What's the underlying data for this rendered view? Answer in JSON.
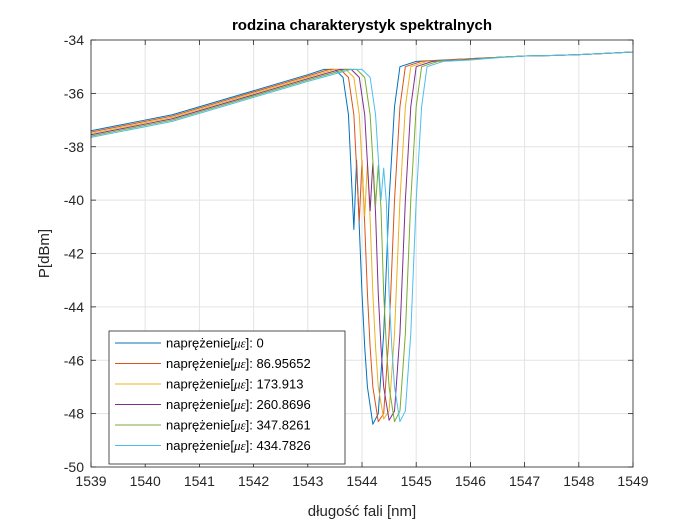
{
  "chart_data": {
    "type": "line",
    "title": "rodzina charakterystyk spektralnych",
    "xlabel": "długość fali [nm]",
    "ylabel": "P[dBm]",
    "xlim": [
      1539,
      1549
    ],
    "ylim": [
      -50,
      -34
    ],
    "x_ticks": [
      "1539",
      "1540",
      "1541",
      "1542",
      "1543",
      "1544",
      "1545",
      "1546",
      "1547",
      "1548",
      "1549"
    ],
    "y_ticks": [
      "-34",
      "-36",
      "-38",
      "-40",
      "-42",
      "-44",
      "-46",
      "-48",
      "-50"
    ],
    "grid": true,
    "legend_position": "bottom-left",
    "legend_prefix": "naprężenie[",
    "legend_unit": "με",
    "legend_suffix": "]: ",
    "series": [
      {
        "name": "naprężenie[με]: 0",
        "strain": "0",
        "color": "#0072BD",
        "x": [
          1539.0,
          1539.5,
          1540.0,
          1540.5,
          1541.0,
          1541.5,
          1542.0,
          1542.5,
          1543.0,
          1543.3,
          1543.5,
          1543.65,
          1543.75,
          1543.85,
          1543.9,
          1543.95,
          1544.0,
          1544.05,
          1544.1,
          1544.2,
          1544.3,
          1544.4,
          1544.5,
          1544.6,
          1544.7,
          1545.0,
          1545.5,
          1546.0,
          1546.5,
          1547.0,
          1547.5,
          1548.0,
          1548.5,
          1549.0
        ],
        "y": [
          -37.4,
          -37.2,
          -37.0,
          -36.8,
          -36.5,
          -36.2,
          -35.9,
          -35.6,
          -35.3,
          -35.1,
          -35.1,
          -35.4,
          -36.8,
          -41.1,
          -38.5,
          -41.0,
          -43.5,
          -45.5,
          -47.0,
          -48.4,
          -48.0,
          -45.0,
          -40.0,
          -36.5,
          -35.0,
          -34.8,
          -34.75,
          -34.7,
          -34.65,
          -34.6,
          -34.58,
          -34.55,
          -34.5,
          -34.45
        ]
      },
      {
        "name": "naprężenie[με]: 86.95652",
        "strain": "86.95652",
        "color": "#D95319",
        "x": [
          1539.0,
          1539.5,
          1540.0,
          1540.5,
          1541.0,
          1541.5,
          1542.0,
          1542.5,
          1543.0,
          1543.4,
          1543.6,
          1543.75,
          1543.85,
          1543.95,
          1544.0,
          1544.05,
          1544.1,
          1544.15,
          1544.2,
          1544.3,
          1544.4,
          1544.5,
          1544.6,
          1544.7,
          1544.8,
          1545.1,
          1545.6,
          1546.0,
          1546.5,
          1547.0,
          1547.5,
          1548.0,
          1548.5,
          1549.0
        ],
        "y": [
          -37.45,
          -37.25,
          -37.05,
          -36.85,
          -36.55,
          -36.25,
          -35.95,
          -35.65,
          -35.35,
          -35.1,
          -35.1,
          -35.4,
          -36.8,
          -40.8,
          -38.5,
          -40.9,
          -43.5,
          -45.5,
          -47.0,
          -48.3,
          -48.0,
          -45.0,
          -40.0,
          -36.5,
          -35.0,
          -34.8,
          -34.75,
          -34.7,
          -34.65,
          -34.6,
          -34.58,
          -34.55,
          -34.5,
          -34.45
        ]
      },
      {
        "name": "naprężenie[με]: 173.913",
        "strain": "173.913",
        "color": "#EDB120",
        "x": [
          1539.0,
          1539.5,
          1540.0,
          1540.5,
          1541.0,
          1541.5,
          1542.0,
          1542.5,
          1543.0,
          1543.5,
          1543.7,
          1543.85,
          1543.95,
          1544.05,
          1544.1,
          1544.15,
          1544.2,
          1544.25,
          1544.3,
          1544.4,
          1544.5,
          1544.6,
          1544.7,
          1544.8,
          1544.9,
          1545.2,
          1545.7,
          1546.0,
          1546.5,
          1547.0,
          1547.5,
          1548.0,
          1548.5,
          1549.0
        ],
        "y": [
          -37.5,
          -37.3,
          -37.1,
          -36.9,
          -36.6,
          -36.3,
          -36.0,
          -35.7,
          -35.4,
          -35.1,
          -35.1,
          -35.4,
          -36.8,
          -40.6,
          -38.6,
          -40.7,
          -43.5,
          -45.5,
          -47.0,
          -48.2,
          -47.9,
          -45.0,
          -40.0,
          -36.5,
          -35.0,
          -34.8,
          -34.75,
          -34.7,
          -34.65,
          -34.6,
          -34.58,
          -34.55,
          -34.5,
          -34.45
        ]
      },
      {
        "name": "naprężenie[με]: 260.8696",
        "strain": "260.8696",
        "color": "#7E2F8E",
        "x": [
          1539.0,
          1539.5,
          1540.0,
          1540.5,
          1541.0,
          1541.5,
          1542.0,
          1542.5,
          1543.0,
          1543.6,
          1543.8,
          1543.95,
          1544.05,
          1544.15,
          1544.2,
          1544.25,
          1544.3,
          1544.35,
          1544.4,
          1544.5,
          1544.6,
          1544.7,
          1544.8,
          1544.9,
          1545.0,
          1545.3,
          1545.8,
          1546.1,
          1546.5,
          1547.0,
          1547.5,
          1548.0,
          1548.5,
          1549.0
        ],
        "y": [
          -37.55,
          -37.35,
          -37.15,
          -36.95,
          -36.65,
          -36.35,
          -36.05,
          -35.75,
          -35.45,
          -35.1,
          -35.1,
          -35.4,
          -36.8,
          -40.4,
          -38.6,
          -40.5,
          -43.5,
          -45.5,
          -47.0,
          -48.25,
          -47.9,
          -45.0,
          -40.0,
          -36.5,
          -35.0,
          -34.8,
          -34.75,
          -34.7,
          -34.65,
          -34.6,
          -34.58,
          -34.55,
          -34.5,
          -34.45
        ]
      },
      {
        "name": "naprężenie[με]: 347.8261",
        "strain": "347.8261",
        "color": "#77AC30",
        "x": [
          1539.0,
          1539.5,
          1540.0,
          1540.5,
          1541.0,
          1541.5,
          1542.0,
          1542.5,
          1543.0,
          1543.7,
          1543.9,
          1544.05,
          1544.15,
          1544.25,
          1544.3,
          1544.35,
          1544.4,
          1544.45,
          1544.5,
          1544.6,
          1544.7,
          1544.8,
          1544.9,
          1545.0,
          1545.1,
          1545.4,
          1545.9,
          1546.2,
          1546.5,
          1547.0,
          1547.5,
          1548.0,
          1548.5,
          1549.0
        ],
        "y": [
          -37.6,
          -37.4,
          -37.2,
          -37.0,
          -36.7,
          -36.4,
          -36.1,
          -35.8,
          -35.5,
          -35.1,
          -35.1,
          -35.4,
          -36.8,
          -40.2,
          -38.7,
          -40.3,
          -43.5,
          -45.5,
          -47.0,
          -48.3,
          -47.9,
          -45.0,
          -40.0,
          -36.5,
          -35.0,
          -34.8,
          -34.75,
          -34.7,
          -34.65,
          -34.6,
          -34.58,
          -34.55,
          -34.5,
          -34.45
        ]
      },
      {
        "name": "naprężenie[με]: 434.7826",
        "strain": "434.7826",
        "color": "#4DBEEE",
        "x": [
          1539.0,
          1539.5,
          1540.0,
          1540.5,
          1541.0,
          1541.5,
          1542.0,
          1542.5,
          1543.0,
          1543.8,
          1544.0,
          1544.15,
          1544.25,
          1544.35,
          1544.4,
          1544.45,
          1544.5,
          1544.55,
          1544.6,
          1544.7,
          1544.8,
          1544.9,
          1545.0,
          1545.1,
          1545.2,
          1545.5,
          1546.0,
          1546.3,
          1546.6,
          1547.0,
          1547.5,
          1548.0,
          1548.5,
          1549.0
        ],
        "y": [
          -37.65,
          -37.45,
          -37.25,
          -37.05,
          -36.75,
          -36.45,
          -36.15,
          -35.85,
          -35.55,
          -35.1,
          -35.1,
          -35.4,
          -36.8,
          -40.0,
          -38.8,
          -40.1,
          -43.5,
          -45.5,
          -47.0,
          -48.3,
          -47.9,
          -45.0,
          -40.0,
          -36.5,
          -35.0,
          -34.8,
          -34.75,
          -34.7,
          -34.65,
          -34.6,
          -34.58,
          -34.55,
          -34.5,
          -34.45
        ]
      }
    ]
  }
}
